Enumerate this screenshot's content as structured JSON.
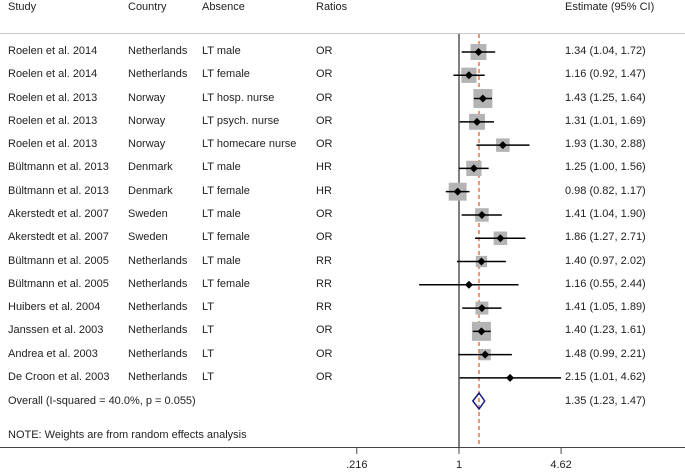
{
  "chart_data": {
    "type": "forest",
    "headers": {
      "study": "Study",
      "country": "Country",
      "absence": "Absence",
      "ratios": "Ratios",
      "estimate": "Estimate (95% CI)"
    },
    "x_scale": "log",
    "xlim": [
      0.216,
      4.62
    ],
    "x_ticks": [
      {
        "value": 0.216,
        "label": ".216"
      },
      {
        "value": 1,
        "label": "1"
      },
      {
        "value": 4.62,
        "label": "4.62"
      }
    ],
    "null_line": 1,
    "pooled_line": 1.35,
    "rows": [
      {
        "study": "Roelen et al. 2014",
        "country": "Netherlands",
        "absence": "LT male",
        "ratio": "OR",
        "est": 1.34,
        "lo": 1.04,
        "hi": 1.72,
        "label": "1.34 (1.04, 1.72)",
        "rel_weight": 0.72
      },
      {
        "study": "Roelen et al. 2014",
        "country": "Netherlands",
        "absence": "LT female",
        "ratio": "OR",
        "est": 1.16,
        "lo": 0.92,
        "hi": 1.47,
        "label": "1.16 (0.92, 1.47)",
        "rel_weight": 0.66
      },
      {
        "study": "Roelen et al. 2013",
        "country": "Norway",
        "absence": "LT hosp. nurse",
        "ratio": "OR",
        "est": 1.43,
        "lo": 1.25,
        "hi": 1.64,
        "label": "1.43 (1.25, 1.64)",
        "rel_weight": 1.0
      },
      {
        "study": "Roelen et al. 2013",
        "country": "Norway",
        "absence": "LT psych. nurse",
        "ratio": "OR",
        "est": 1.31,
        "lo": 1.01,
        "hi": 1.69,
        "label": "1.31 (1.01, 1.69)",
        "rel_weight": 0.72
      },
      {
        "study": "Roelen et al. 2013",
        "country": "Norway",
        "absence": "LT homecare nurse",
        "ratio": "OR",
        "est": 1.93,
        "lo": 1.3,
        "hi": 2.88,
        "label": "1.93 (1.30, 2.88)",
        "rel_weight": 0.5
      },
      {
        "study": "Bültmann et al. 2013",
        "country": "Denmark",
        "absence": "LT male",
        "ratio": "HR",
        "est": 1.25,
        "lo": 1.0,
        "hi": 1.56,
        "label": "1.25 (1.00, 1.56)",
        "rel_weight": 0.66
      },
      {
        "study": "Bültmann et al. 2013",
        "country": "Denmark",
        "absence": "LT female",
        "ratio": "HR",
        "est": 0.98,
        "lo": 0.82,
        "hi": 1.17,
        "label": "0.98 (0.82, 1.17)",
        "rel_weight": 0.9
      },
      {
        "study": "Akerstedt et al. 2007",
        "country": "Sweden",
        "absence": "LT male",
        "ratio": "OR",
        "est": 1.41,
        "lo": 1.04,
        "hi": 1.9,
        "label": "1.41 (1.04, 1.90)",
        "rel_weight": 0.5
      },
      {
        "study": "Akerstedt et al. 2007",
        "country": "Sweden",
        "absence": "LT female",
        "ratio": "OR",
        "est": 1.86,
        "lo": 1.27,
        "hi": 2.71,
        "label": "1.86 (1.27, 2.71)",
        "rel_weight": 0.5
      },
      {
        "study": "Bültmann et al. 2005",
        "country": "Netherlands",
        "absence": "LT male",
        "ratio": "RR",
        "est": 1.4,
        "lo": 0.97,
        "hi": 2.02,
        "label": "1.40 (0.97, 2.02)",
        "rel_weight": 0.3
      },
      {
        "study": "Bültmann et al. 2005",
        "country": "Netherlands",
        "absence": "LT female",
        "ratio": "RR",
        "est": 1.16,
        "lo": 0.55,
        "hi": 2.44,
        "label": "1.16 (0.55, 2.44)",
        "rel_weight": 0.0
      },
      {
        "study": "Huibers et al. 2004",
        "country": "Netherlands",
        "absence": "LT",
        "ratio": "RR",
        "est": 1.41,
        "lo": 1.05,
        "hi": 1.89,
        "label": "1.41 (1.05, 1.89)",
        "rel_weight": 0.45
      },
      {
        "study": "Janssen et al. 2003",
        "country": "Netherlands",
        "absence": "LT",
        "ratio": "OR",
        "est": 1.4,
        "lo": 1.23,
        "hi": 1.61,
        "label": "1.40 (1.23, 1.61)",
        "rel_weight": 1.0
      },
      {
        "study": "Andrea et al. 2003",
        "country": "Netherlands",
        "absence": "LT",
        "ratio": "OR",
        "est": 1.48,
        "lo": 0.99,
        "hi": 2.21,
        "label": "1.48 (0.99, 2.21)",
        "rel_weight": 0.3
      },
      {
        "study": "De Croon et al. 2003",
        "country": "Netherlands",
        "absence": "LT",
        "ratio": "OR",
        "est": 2.15,
        "lo": 1.01,
        "hi": 4.62,
        "label": "2.15 (1.01, 4.62)",
        "rel_weight": 0.0
      }
    ],
    "overall": {
      "label_text": "Overall  (I-squared = 40.0%, p = 0.055)",
      "est": 1.35,
      "lo": 1.23,
      "hi": 1.47,
      "label": "1.35 (1.23, 1.47)"
    },
    "note": "NOTE: Weights are from random effects analysis",
    "colors": {
      "point": "#000000",
      "box": "#b4b4b4",
      "ci_line": "#000000",
      "null_line": "#555555",
      "pooled_line": "#e8602c",
      "diamond": "#1a1a80",
      "separator": "#c8c8c8",
      "axis": "#444444"
    }
  }
}
